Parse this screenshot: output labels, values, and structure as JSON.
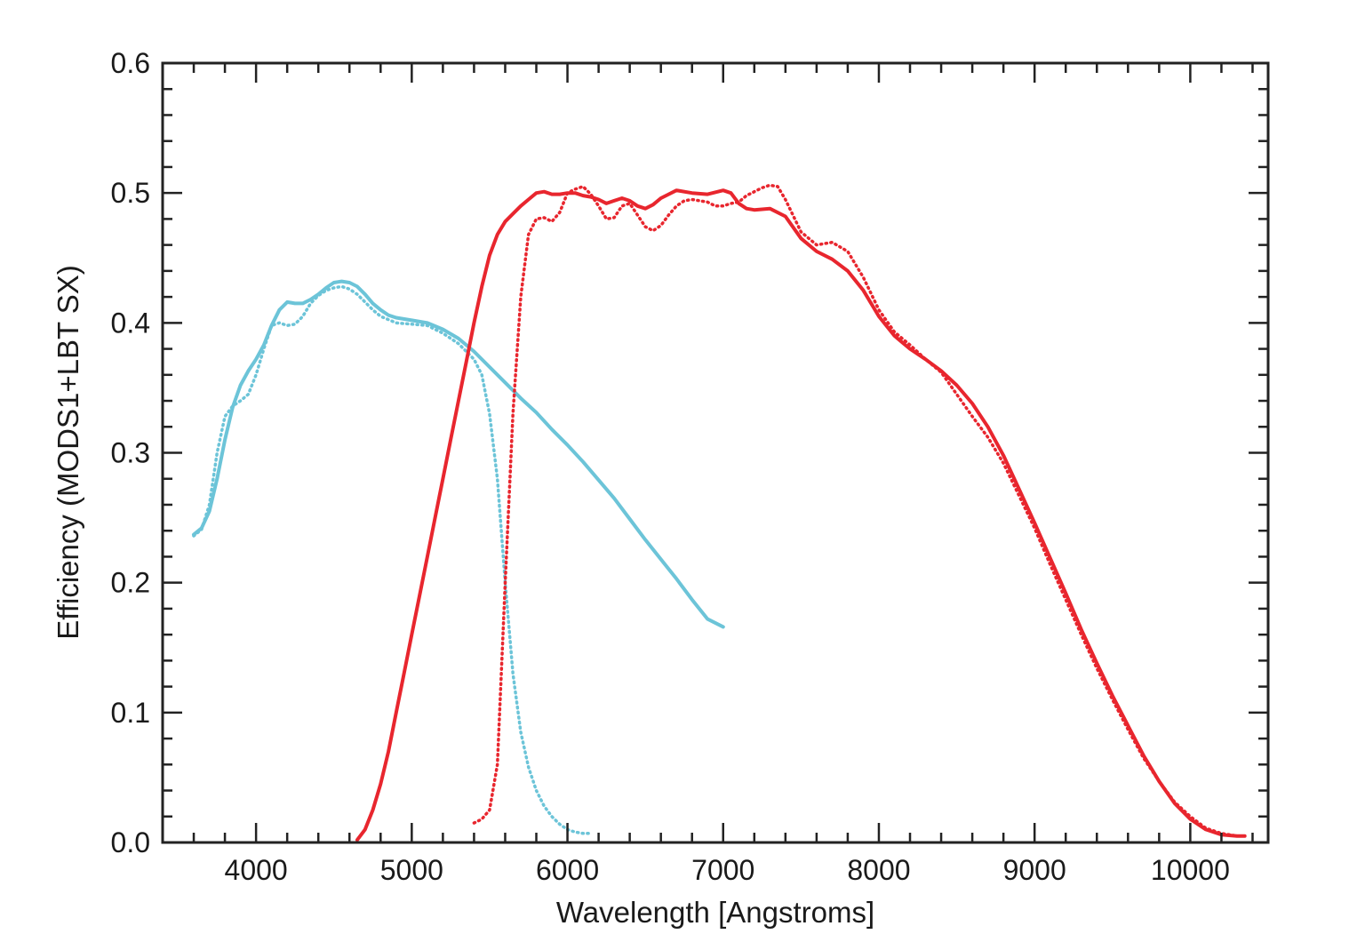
{
  "chart_data": {
    "type": "line",
    "title": "",
    "xlabel": "Wavelength [Angstroms]",
    "ylabel": "Efficiency (MODS1+LBT SX)",
    "xlim": [
      3400,
      10500
    ],
    "ylim": [
      0.0,
      0.6
    ],
    "x_ticks": [
      4000,
      5000,
      6000,
      7000,
      8000,
      9000,
      10000
    ],
    "x_tick_labels": [
      "4000",
      "5000",
      "6000",
      "7000",
      "8000",
      "9000",
      "10000"
    ],
    "x_minor_step": 200,
    "y_ticks": [
      0.0,
      0.1,
      0.2,
      0.3,
      0.4,
      0.5,
      0.6
    ],
    "y_tick_labels": [
      "0.0",
      "0.1",
      "0.2",
      "0.3",
      "0.4",
      "0.5",
      "0.6"
    ],
    "y_minor_step": 0.02,
    "grid": false,
    "legend": "none",
    "series": [
      {
        "color": "#6cc4d8",
        "style": "solid",
        "x": [
          3600,
          3650,
          3700,
          3750,
          3800,
          3850,
          3900,
          3950,
          4000,
          4050,
          4100,
          4150,
          4200,
          4250,
          4300,
          4350,
          4400,
          4450,
          4500,
          4550,
          4600,
          4650,
          4700,
          4750,
          4800,
          4850,
          4900,
          5000,
          5100,
          5200,
          5300,
          5400,
          5500,
          5600,
          5700,
          5800,
          5900,
          6000,
          6100,
          6200,
          6300,
          6400,
          6500,
          6600,
          6700,
          6800,
          6900,
          7000
        ],
        "y": [
          0.237,
          0.242,
          0.255,
          0.28,
          0.31,
          0.335,
          0.352,
          0.363,
          0.372,
          0.383,
          0.398,
          0.41,
          0.416,
          0.415,
          0.415,
          0.418,
          0.422,
          0.427,
          0.431,
          0.432,
          0.431,
          0.428,
          0.422,
          0.415,
          0.41,
          0.406,
          0.404,
          0.402,
          0.4,
          0.395,
          0.388,
          0.378,
          0.366,
          0.354,
          0.342,
          0.331,
          0.318,
          0.306,
          0.293,
          0.279,
          0.265,
          0.249,
          0.233,
          0.218,
          0.203,
          0.187,
          0.172,
          0.166
        ]
      },
      {
        "color": "#6cc4d8",
        "style": "dotted",
        "x": [
          3600,
          3650,
          3700,
          3750,
          3800,
          3850,
          3900,
          3950,
          4000,
          4050,
          4100,
          4150,
          4200,
          4250,
          4300,
          4350,
          4400,
          4450,
          4500,
          4550,
          4600,
          4650,
          4700,
          4750,
          4800,
          4900,
          5000,
          5100,
          5200,
          5300,
          5350,
          5400,
          5450,
          5500,
          5550,
          5600,
          5650,
          5700,
          5750,
          5800,
          5850,
          5900,
          5950,
          6000,
          6050,
          6100,
          6150
        ],
        "y": [
          0.236,
          0.241,
          0.26,
          0.3,
          0.328,
          0.336,
          0.34,
          0.345,
          0.36,
          0.38,
          0.398,
          0.4,
          0.398,
          0.399,
          0.405,
          0.415,
          0.421,
          0.425,
          0.427,
          0.428,
          0.426,
          0.422,
          0.416,
          0.41,
          0.405,
          0.4,
          0.399,
          0.398,
          0.392,
          0.384,
          0.378,
          0.372,
          0.36,
          0.33,
          0.28,
          0.2,
          0.13,
          0.085,
          0.058,
          0.04,
          0.028,
          0.02,
          0.014,
          0.01,
          0.008,
          0.007,
          0.007
        ]
      },
      {
        "color": "#e8262e",
        "style": "solid",
        "x": [
          4650,
          4700,
          4750,
          4800,
          4850,
          4900,
          4950,
          5000,
          5050,
          5100,
          5150,
          5200,
          5250,
          5300,
          5350,
          5400,
          5450,
          5500,
          5550,
          5600,
          5650,
          5700,
          5750,
          5800,
          5850,
          5900,
          5950,
          6000,
          6050,
          6100,
          6150,
          6200,
          6250,
          6300,
          6350,
          6400,
          6450,
          6500,
          6550,
          6600,
          6650,
          6700,
          6800,
          6900,
          7000,
          7050,
          7100,
          7150,
          7200,
          7300,
          7400,
          7500,
          7600,
          7700,
          7800,
          7900,
          8000,
          8100,
          8200,
          8300,
          8400,
          8500,
          8600,
          8700,
          8800,
          8900,
          9000,
          9100,
          9200,
          9300,
          9400,
          9500,
          9600,
          9700,
          9800,
          9900,
          10000,
          10100,
          10200,
          10300,
          10350
        ],
        "y": [
          0.002,
          0.01,
          0.025,
          0.045,
          0.07,
          0.1,
          0.13,
          0.16,
          0.19,
          0.22,
          0.25,
          0.28,
          0.31,
          0.34,
          0.37,
          0.4,
          0.428,
          0.452,
          0.468,
          0.478,
          0.484,
          0.49,
          0.495,
          0.5,
          0.501,
          0.499,
          0.499,
          0.5,
          0.5,
          0.498,
          0.497,
          0.495,
          0.492,
          0.494,
          0.496,
          0.494,
          0.49,
          0.488,
          0.491,
          0.496,
          0.499,
          0.502,
          0.5,
          0.499,
          0.502,
          0.5,
          0.492,
          0.488,
          0.487,
          0.488,
          0.482,
          0.465,
          0.455,
          0.449,
          0.44,
          0.425,
          0.405,
          0.39,
          0.38,
          0.372,
          0.363,
          0.352,
          0.338,
          0.32,
          0.298,
          0.272,
          0.246,
          0.219,
          0.192,
          0.164,
          0.138,
          0.113,
          0.09,
          0.067,
          0.047,
          0.03,
          0.018,
          0.01,
          0.006,
          0.005,
          0.005
        ]
      },
      {
        "color": "#e8262e",
        "style": "dotted",
        "x": [
          5400,
          5450,
          5500,
          5550,
          5600,
          5650,
          5700,
          5750,
          5800,
          5850,
          5900,
          5950,
          6000,
          6050,
          6100,
          6150,
          6200,
          6250,
          6300,
          6350,
          6400,
          6450,
          6500,
          6550,
          6600,
          6650,
          6700,
          6750,
          6800,
          6850,
          6900,
          6950,
          7000,
          7050,
          7100,
          7150,
          7200,
          7250,
          7300,
          7350,
          7400,
          7500,
          7600,
          7700,
          7800,
          7900,
          8000,
          8100,
          8200,
          8300,
          8400,
          8500,
          8600,
          8700,
          8800,
          8900,
          9000,
          9100,
          9200,
          9300,
          9400,
          9500,
          9600,
          9700,
          9800,
          9900,
          10000,
          10100,
          10200,
          10300,
          10350
        ],
        "y": [
          0.015,
          0.018,
          0.025,
          0.06,
          0.2,
          0.33,
          0.42,
          0.468,
          0.48,
          0.481,
          0.478,
          0.485,
          0.5,
          0.503,
          0.505,
          0.499,
          0.49,
          0.48,
          0.481,
          0.49,
          0.492,
          0.483,
          0.474,
          0.471,
          0.475,
          0.483,
          0.49,
          0.494,
          0.495,
          0.494,
          0.493,
          0.49,
          0.49,
          0.492,
          0.493,
          0.498,
          0.501,
          0.504,
          0.506,
          0.505,
          0.495,
          0.47,
          0.46,
          0.462,
          0.455,
          0.435,
          0.41,
          0.393,
          0.383,
          0.372,
          0.362,
          0.345,
          0.328,
          0.312,
          0.292,
          0.267,
          0.242,
          0.214,
          0.187,
          0.16,
          0.134,
          0.11,
          0.087,
          0.065,
          0.047,
          0.031,
          0.02,
          0.011,
          0.007,
          0.005,
          0.005
        ]
      }
    ]
  }
}
